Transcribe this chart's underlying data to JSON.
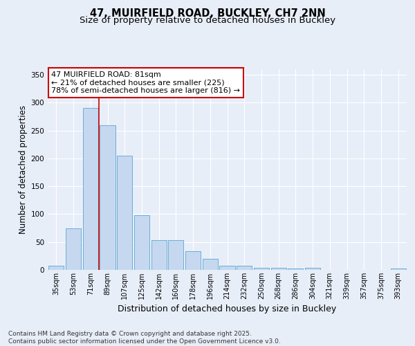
{
  "title1": "47, MUIRFIELD ROAD, BUCKLEY, CH7 2NN",
  "title2": "Size of property relative to detached houses in Buckley",
  "xlabel": "Distribution of detached houses by size in Buckley",
  "ylabel": "Number of detached properties",
  "categories": [
    "35sqm",
    "53sqm",
    "71sqm",
    "89sqm",
    "107sqm",
    "125sqm",
    "142sqm",
    "160sqm",
    "178sqm",
    "196sqm",
    "214sqm",
    "232sqm",
    "250sqm",
    "268sqm",
    "286sqm",
    "304sqm",
    "321sqm",
    "339sqm",
    "357sqm",
    "375sqm",
    "393sqm"
  ],
  "values": [
    8,
    75,
    290,
    260,
    205,
    98,
    53,
    53,
    33,
    20,
    7,
    7,
    4,
    4,
    3,
    4,
    0,
    0,
    0,
    0,
    3
  ],
  "bar_color": "#c5d8f0",
  "bar_edge_color": "#6baed6",
  "background_color": "#e8eef8",
  "grid_color": "#ffffff",
  "annotation_text": "47 MUIRFIELD ROAD: 81sqm\n← 21% of detached houses are smaller (225)\n78% of semi-detached houses are larger (816) →",
  "annotation_box_color": "white",
  "annotation_box_edge": "#cc0000",
  "vline_color": "#cc0000",
  "vline_x": 2.5,
  "ylim": [
    0,
    360
  ],
  "yticks": [
    0,
    50,
    100,
    150,
    200,
    250,
    300,
    350
  ],
  "footnote": "Contains HM Land Registry data © Crown copyright and database right 2025.\nContains public sector information licensed under the Open Government Licence v3.0.",
  "title_fontsize": 10.5,
  "subtitle_fontsize": 9.5,
  "tick_fontsize": 7,
  "ylabel_fontsize": 8.5,
  "xlabel_fontsize": 9,
  "annot_fontsize": 8,
  "footnote_fontsize": 6.5
}
